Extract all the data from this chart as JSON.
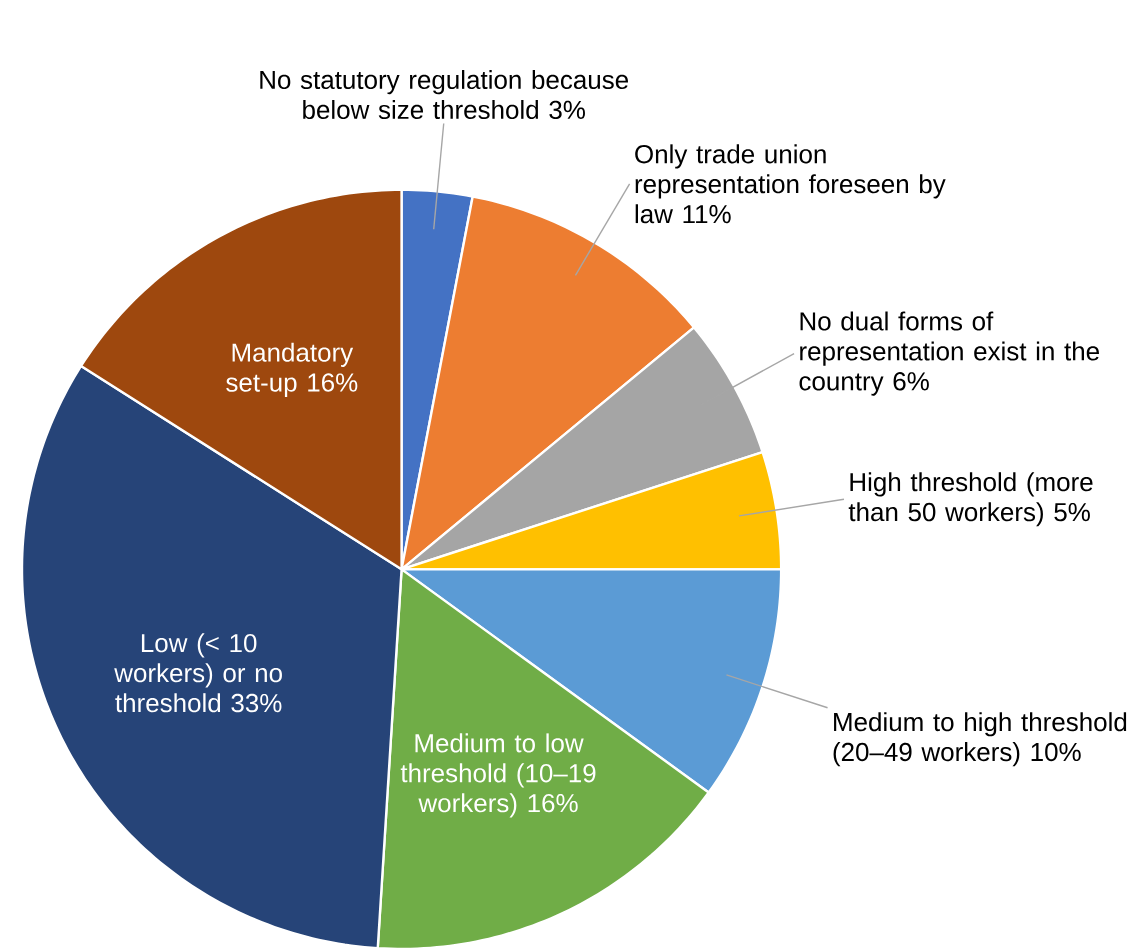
{
  "chart_data": {
    "type": "pie",
    "categories": [
      "No statutory regulation because below size threshold",
      "Only trade union representation foreseen by law",
      "No dual forms of representation exist in the country",
      "High threshold (more than 50 workers)",
      "Medium to high threshold (20–49 workers)",
      "Medium to low threshold (10–19 workers)",
      "Low (< 10 workers) or no threshold",
      "Mandatory set-up"
    ],
    "values": [
      3,
      11,
      6,
      5,
      10,
      16,
      33,
      16
    ],
    "value_labels": [
      "3%",
      "11%",
      "6%",
      "5%",
      "10%",
      "16%",
      "33%",
      "16%"
    ],
    "colors": [
      "#4472c4",
      "#ed7d31",
      "#a5a5a5",
      "#ffc000",
      "#5b9bd5",
      "#70ad47",
      "#264478",
      "#9e480e"
    ]
  }
}
